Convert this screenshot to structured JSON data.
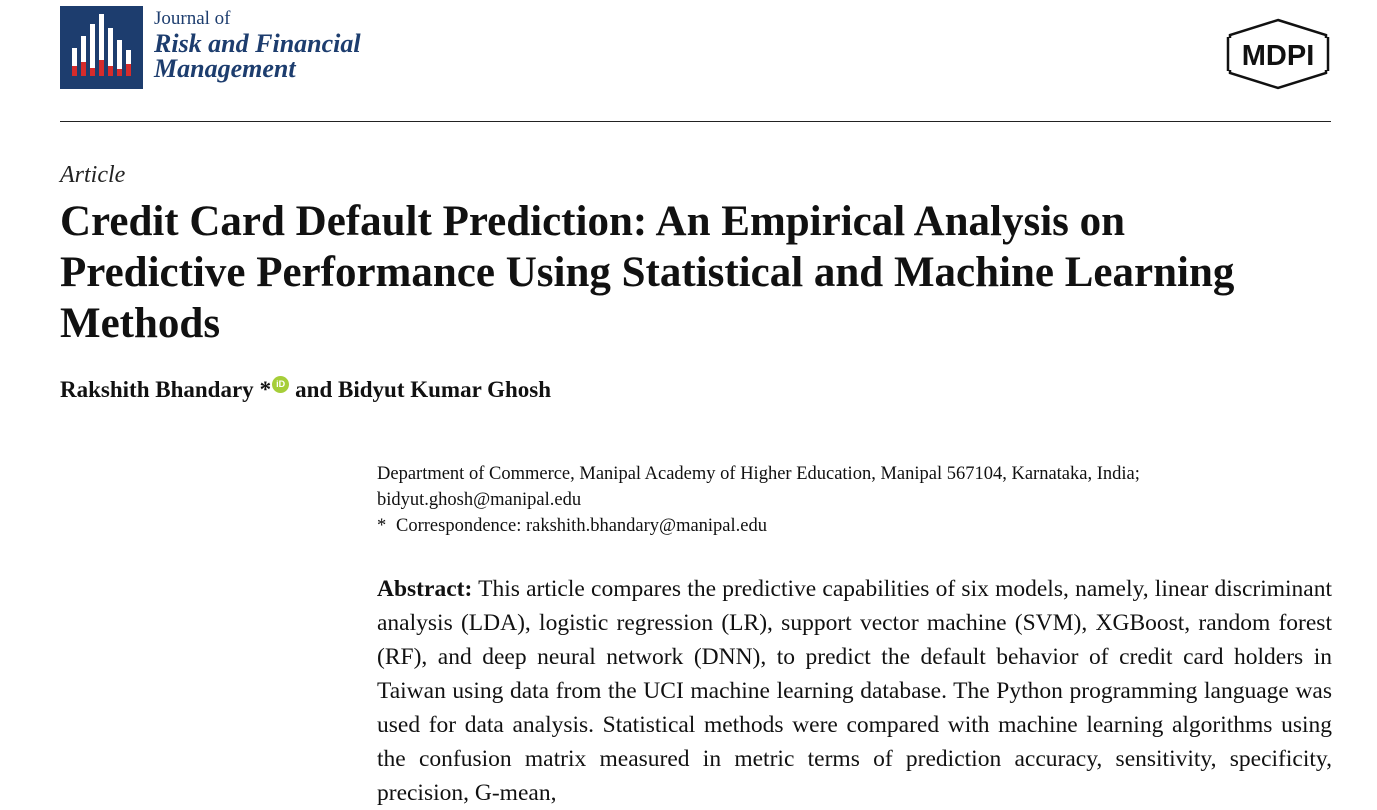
{
  "journal": {
    "line1": "Journal of",
    "line2": "Risk and Financial",
    "line3": "Management",
    "logo_bg": "#1d3d6e",
    "logo_accent": "#d62b2b"
  },
  "publisher": {
    "logo_text": "MDPI"
  },
  "article": {
    "type": "Article",
    "title": "Credit Card Default Prediction: An Empirical Analysis on Predictive Performance Using Statistical and Machine Learning Methods",
    "authors": {
      "author1": "Rakshith Bhandary",
      "author1_mark": "*",
      "orcid_icon": "orcid-icon",
      "connector_and_author2": "and Bidyut Kumar Ghosh"
    },
    "affiliation": {
      "line1": "Department of Commerce, Manipal Academy of Higher Education, Manipal 567104, Karnataka, India;",
      "line2": "bidyut.ghosh@manipal.edu",
      "corr_mark": "*",
      "corr_text": "Correspondence: rakshith.bhandary@manipal.edu"
    },
    "abstract": {
      "label": "Abstract:",
      "text": "This article compares the predictive capabilities of six models, namely, linear discriminant analysis (LDA), logistic regression (LR), support vector machine (SVM), XGBoost, random forest (RF), and deep neural network (DNN), to predict the default behavior of credit card holders in Taiwan using data from the UCI machine learning database. The Python programming language was used for data analysis. Statistical methods were compared with machine learning algorithms using the confusion matrix measured in metric terms of prediction accuracy, sensitivity, specificity, precision, G-mean,"
    }
  }
}
